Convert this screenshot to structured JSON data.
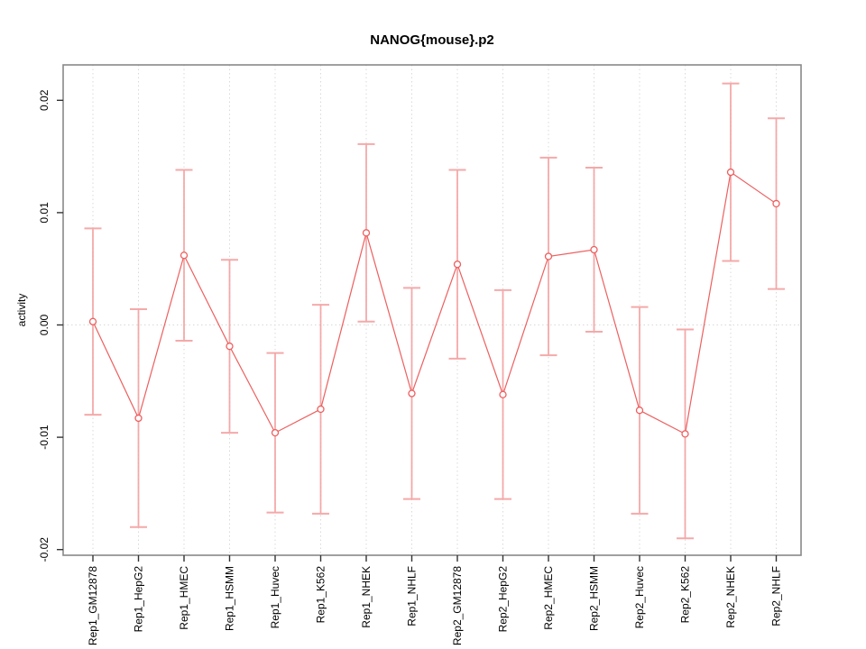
{
  "window": {
    "background": "#ffffff"
  },
  "chart_data": {
    "type": "line",
    "title": "NANOG{mouse}.p2",
    "xlabel": "",
    "ylabel": "activity",
    "ylim": [
      -0.022,
      0.022
    ],
    "yticks": [
      0.02,
      0.01,
      0.0,
      -0.01,
      -0.02
    ],
    "ytick_labels": [
      "0.02",
      "0.01",
      "0.00",
      "-0.01",
      "-0.02"
    ],
    "grid": {
      "vertical_dotted_per_category": true,
      "horizontal_dotted_at_zero": true,
      "grid_color": "#d9d9d9"
    },
    "legend_position": "none",
    "marker": "open-circle",
    "categories": [
      "Rep1_GM12878",
      "Rep1_HepG2",
      "Rep1_HMEC",
      "Rep1_HSMM",
      "Rep1_Huvec",
      "Rep1_K562",
      "Rep1_NHEK",
      "Rep1_NHLF",
      "Rep2_GM12878",
      "Rep2_HepG2",
      "Rep2_HMEC",
      "Rep2_HSMM",
      "Rep2_Huvec",
      "Rep2_K562",
      "Rep2_NHEK",
      "Rep2_NHLF"
    ],
    "series": [
      {
        "name": "activity",
        "color": "#ed5f5f",
        "errorbar_color": "#f4a0a0",
        "values": [
          0.0003,
          -0.0083,
          0.0062,
          -0.0019,
          -0.0096,
          -0.0075,
          0.0082,
          -0.0061,
          0.0054,
          -0.0062,
          0.0061,
          0.0067,
          -0.0076,
          -0.0097,
          0.0136,
          0.0108
        ],
        "errors": [
          0.0083,
          0.0097,
          0.0076,
          0.0077,
          0.0071,
          0.0093,
          0.0079,
          0.0094,
          0.0084,
          0.0093,
          0.0088,
          0.0073,
          0.0092,
          0.0093,
          0.0079,
          0.0076
        ]
      }
    ],
    "axis_colors": {
      "box": "#888888",
      "ticks": "#333333",
      "text": "#000000"
    }
  }
}
